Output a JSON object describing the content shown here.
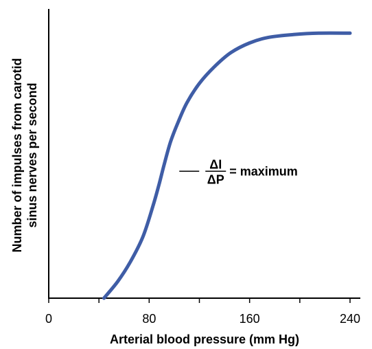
{
  "chart_data": {
    "type": "line",
    "xlabel": "Arterial blood pressure (mm Hg)",
    "ylabel_line1": "Number of impulses from carotid",
    "ylabel_line2": "sinus nerves per second",
    "xlim": [
      0,
      240
    ],
    "ylim": [
      0,
      100
    ],
    "x_ticks": [
      0,
      40,
      80,
      120,
      160,
      200,
      240
    ],
    "x_tick_labels": [
      "0",
      "80",
      "160",
      "240"
    ],
    "x_tick_label_values": [
      0,
      80,
      160,
      240
    ],
    "series": [
      {
        "color": "#3f5da6",
        "points": [
          [
            44,
            0
          ],
          [
            55,
            6
          ],
          [
            65,
            13
          ],
          [
            75,
            22
          ],
          [
            83,
            33
          ],
          [
            88,
            41
          ],
          [
            92,
            48
          ],
          [
            97,
            56
          ],
          [
            103,
            63
          ],
          [
            110,
            70
          ],
          [
            120,
            77
          ],
          [
            132,
            83
          ],
          [
            145,
            88
          ],
          [
            160,
            91.5
          ],
          [
            175,
            93.5
          ],
          [
            195,
            94.5
          ],
          [
            215,
            95
          ],
          [
            240,
            95
          ]
        ]
      }
    ],
    "annotation": {
      "numerator": "ΔI",
      "denominator": "ΔP",
      "suffix": "= maximum",
      "x": 104,
      "y": 45.5
    }
  }
}
